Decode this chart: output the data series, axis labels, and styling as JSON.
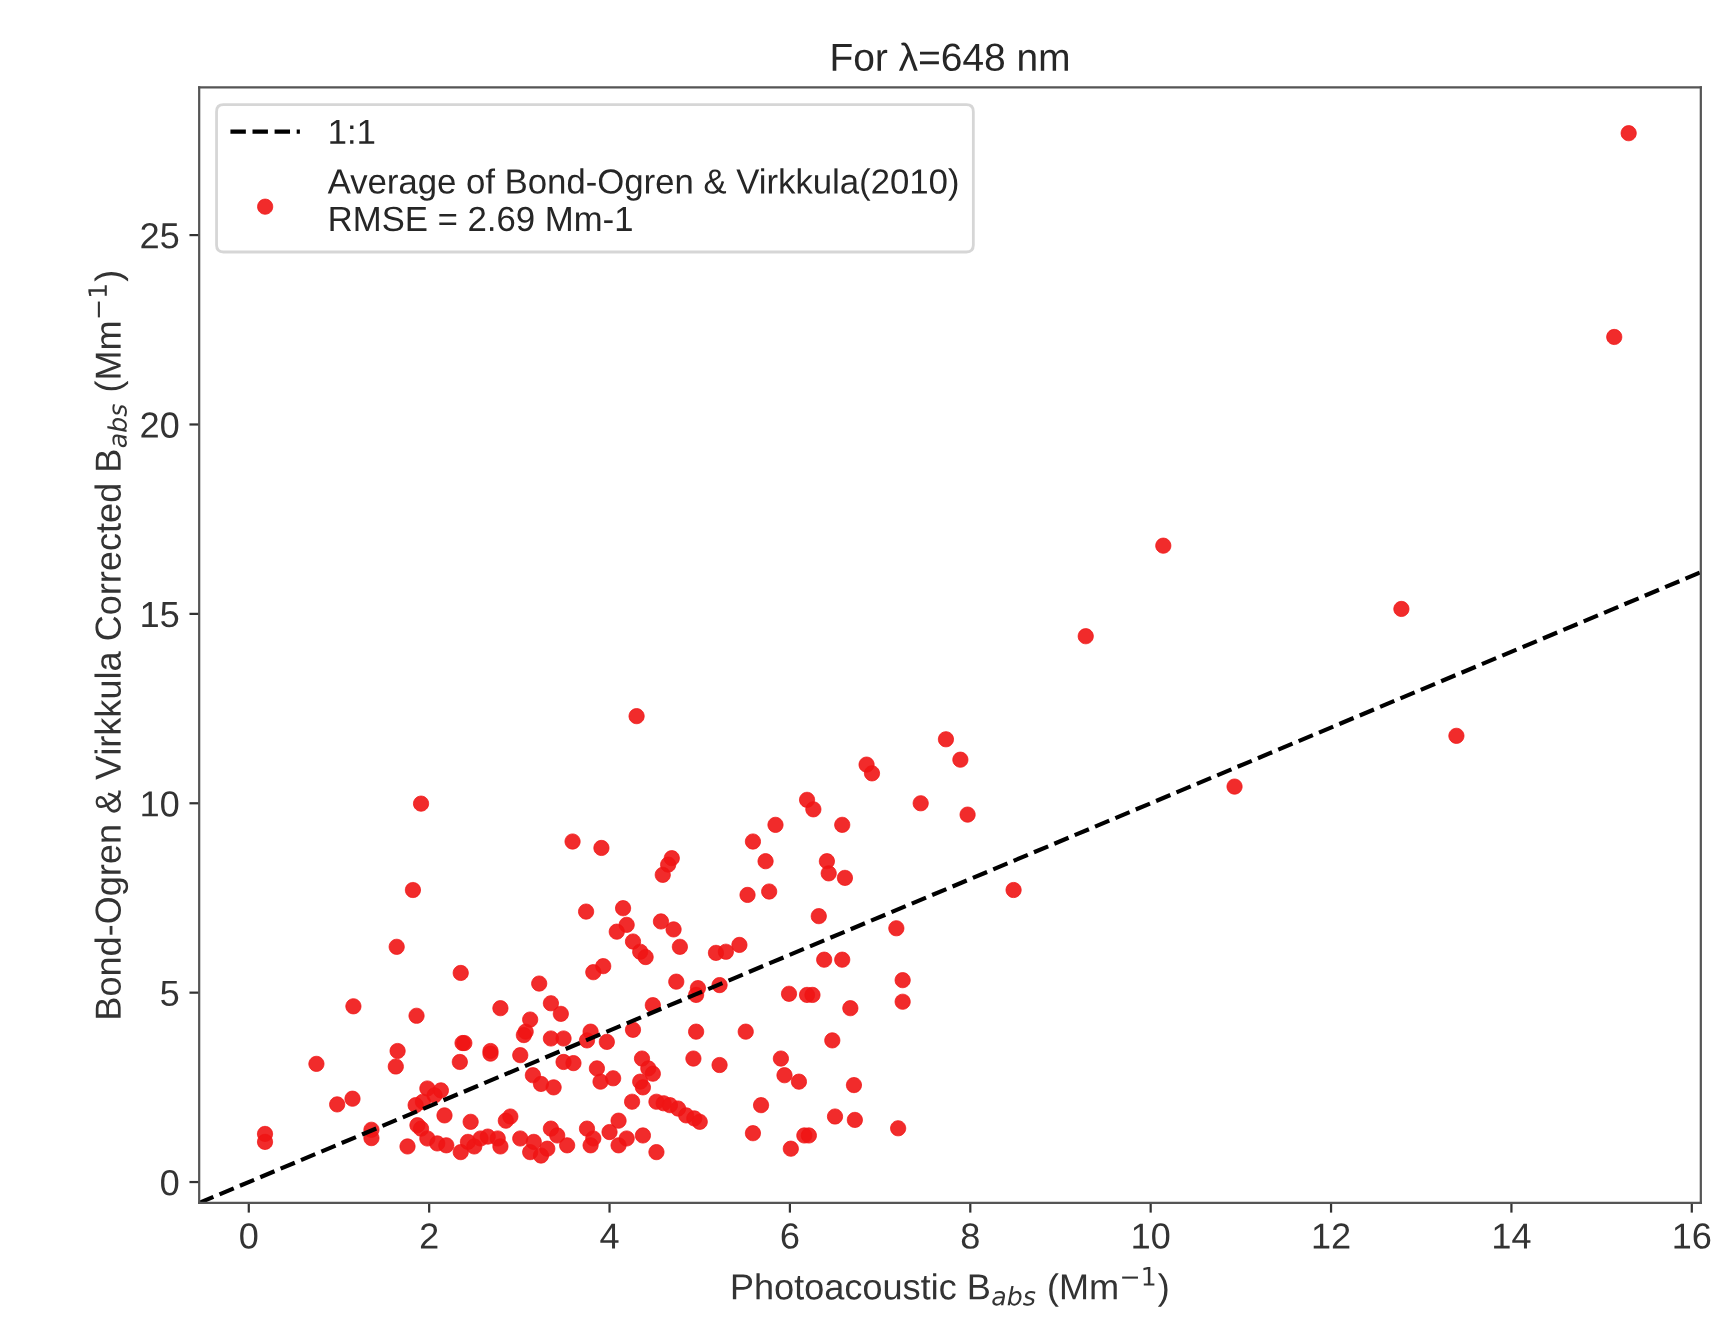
{
  "chart_data": {
    "type": "scatter",
    "title": "For λ=648 nm",
    "xlabel": "Photoacoustic B$_{abs}$ (Mm$^{−1}$)",
    "ylabel": "Bond-Ogren & Virkkula Corrected B$_{abs}$ (Mm$^{−1}$)",
    "xlim": [
      -0.55,
      16.1
    ],
    "ylim": [
      -0.55,
      28.9
    ],
    "xticks": [
      0,
      2,
      4,
      6,
      8,
      10,
      12,
      14,
      16
    ],
    "yticks": [
      0,
      5,
      10,
      15,
      20,
      25
    ],
    "grid": false,
    "legend": "top left",
    "series": [
      {
        "type": "line",
        "name": "1:1",
        "color": "#000000",
        "line_style": "dashed",
        "marker": "none",
        "x": [
          -0.55,
          16.1
        ],
        "values": [
          -0.55,
          16.1
        ]
      },
      {
        "name": "Average of Bond-Ogren & Virkkula(2010)\nRMSE = 2.69 Mm-1",
        "color": "#f01414",
        "marker": "circle",
        "x": [
          15.3,
          15.14,
          12.78,
          13.39,
          10.93,
          10.14,
          9.28,
          7.73,
          7.89,
          7.45,
          7.97,
          8.48,
          6.85,
          6.91,
          7.18,
          7.25,
          7.25,
          7.2,
          4.3,
          1.91,
          1.82,
          1.64,
          2.35,
          2.79,
          1.16,
          1.86,
          1.65,
          1.63,
          0.75,
          2.37,
          2.39,
          2.34,
          2.68,
          2.68,
          3.01,
          3.07,
          3.12,
          0.98,
          1.15,
          0.18,
          0.18,
          1.36,
          1.36,
          1.98,
          1.93,
          1.85,
          2.06,
          2.13,
          2.17,
          1.87,
          1.91,
          1.98,
          2.09,
          2.19,
          2.35,
          2.43,
          2.5,
          2.46,
          2.57,
          2.65,
          2.76,
          2.79,
          2.9,
          2.85,
          1.76,
          3.59,
          3.91,
          4.69,
          4.65,
          4.59,
          4.15,
          3.74,
          4.19,
          4.08,
          4.57,
          4.71,
          4.78,
          4.26,
          4.34,
          4.4,
          3.93,
          3.82,
          3.22,
          3.35,
          3.46,
          3.05,
          3.35,
          3.49,
          3.79,
          3.75,
          3.97,
          4.26,
          3.49,
          3.6,
          3.15,
          3.24,
          3.38,
          3.86,
          3.9,
          4.04,
          4.36,
          4.43,
          4.48,
          4.34,
          4.37,
          4.25,
          4.52,
          4.6,
          4.67,
          4.76,
          4.85,
          4.94,
          5.0,
          3.01,
          3.12,
          3.24,
          3.35,
          3.42,
          3.53,
          3.31,
          3.16,
          3.75,
          3.82,
          3.79,
          4.0,
          4.1,
          4.1,
          4.19,
          4.37,
          4.52,
          4.98,
          5.22,
          4.96,
          5.18,
          5.29,
          5.44,
          4.74,
          4.48,
          4.96,
          4.93,
          5.22,
          5.51,
          5.59,
          5.73,
          5.84,
          5.53,
          5.77,
          6.19,
          6.26,
          6.58,
          6.41,
          6.43,
          6.61,
          6.32,
          6.38,
          6.58,
          5.99,
          6.19,
          6.25,
          6.67,
          6.47,
          5.9,
          5.94,
          6.1,
          6.71,
          5.68,
          5.59,
          6.01,
          6.16,
          6.21,
          6.5,
          6.72
        ],
        "values": [
          27.69,
          22.31,
          15.13,
          11.78,
          10.44,
          16.8,
          14.41,
          11.69,
          11.15,
          10.0,
          9.7,
          7.71,
          11.02,
          10.79,
          6.7,
          5.33,
          4.76,
          1.42,
          12.3,
          9.99,
          7.71,
          6.21,
          5.52,
          4.59,
          4.64,
          4.39,
          3.46,
          3.05,
          3.12,
          3.67,
          3.67,
          3.17,
          3.46,
          3.39,
          3.35,
          3.97,
          4.29,
          2.05,
          2.2,
          1.27,
          1.06,
          1.38,
          1.16,
          2.47,
          2.12,
          2.03,
          2.29,
          2.42,
          1.76,
          1.5,
          1.41,
          1.15,
          1.02,
          0.97,
          0.79,
          1.06,
          0.94,
          1.59,
          1.15,
          1.2,
          1.15,
          0.94,
          1.73,
          1.62,
          0.94,
          8.99,
          8.82,
          8.55,
          8.38,
          8.11,
          7.23,
          7.14,
          6.79,
          6.61,
          6.88,
          6.67,
          6.21,
          6.35,
          6.08,
          5.94,
          5.7,
          5.54,
          5.24,
          4.72,
          4.44,
          3.88,
          3.79,
          3.79,
          3.97,
          3.74,
          3.7,
          4.02,
          3.17,
          3.14,
          2.82,
          2.59,
          2.5,
          3.0,
          2.65,
          2.74,
          3.26,
          3.0,
          2.86,
          2.65,
          2.5,
          2.12,
          2.12,
          2.08,
          2.03,
          1.94,
          1.76,
          1.68,
          1.59,
          1.15,
          0.79,
          0.7,
          1.41,
          1.23,
          0.97,
          0.88,
          1.06,
          1.41,
          1.15,
          0.97,
          1.32,
          1.62,
          0.97,
          1.15,
          1.23,
          0.79,
          5.12,
          5.2,
          4.94,
          6.05,
          6.08,
          6.26,
          5.29,
          4.67,
          3.97,
          3.26,
          3.09,
          3.97,
          8.99,
          8.47,
          9.43,
          7.58,
          7.67,
          10.09,
          9.84,
          9.43,
          8.47,
          8.15,
          8.03,
          7.02,
          5.87,
          5.87,
          4.97,
          4.94,
          4.94,
          4.59,
          3.74,
          3.26,
          2.82,
          2.65,
          2.56,
          2.03,
          1.29,
          0.88,
          1.23,
          1.23,
          1.73,
          1.64
        ]
      }
    ]
  }
}
